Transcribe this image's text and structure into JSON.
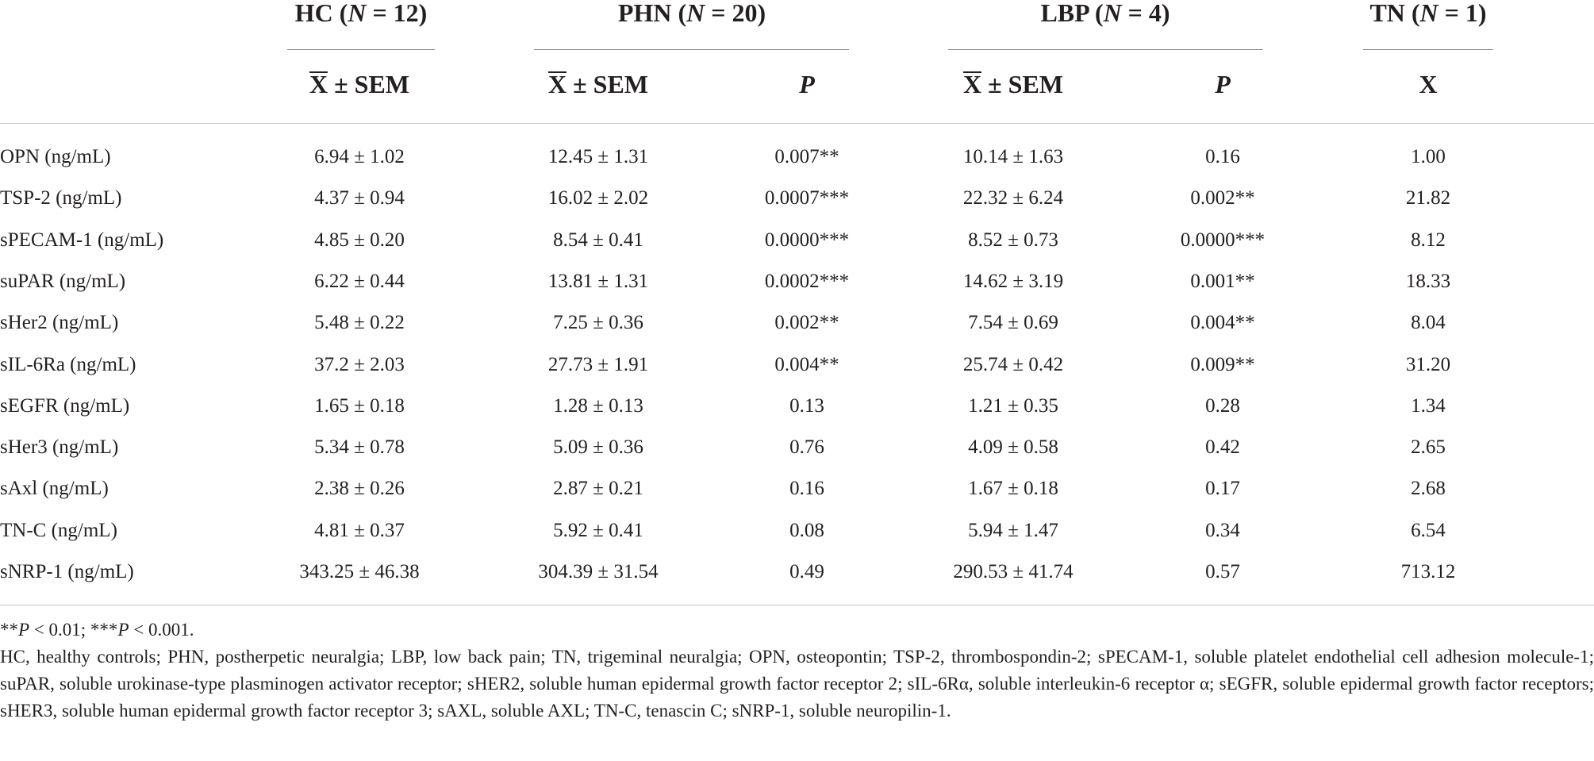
{
  "table": {
    "groups": [
      {
        "abbr": "HC",
        "n_label": "N",
        "n_value": "12"
      },
      {
        "abbr": "PHN",
        "n_label": "N",
        "n_value": "20"
      },
      {
        "abbr": "LBP",
        "n_label": "N",
        "n_value": "4"
      },
      {
        "abbr": "TN",
        "n_label": "N",
        "n_value": "1"
      }
    ],
    "subheaders": {
      "mean_sem": "X ± SEM",
      "mean_x": "X",
      "mean_sem_suffix": " ± SEM",
      "p": "P",
      "x": "X"
    },
    "rows": [
      {
        "label": "OPN (ng/mL)",
        "hc": "6.94 ± 1.02",
        "phn": "12.45 ± 1.31",
        "phn_p": "0.007**",
        "lbp": "10.14 ± 1.63",
        "lbp_p": "0.16",
        "tn": "1.00"
      },
      {
        "label": "TSP-2 (ng/mL)",
        "hc": "4.37 ± 0.94",
        "phn": "16.02 ± 2.02",
        "phn_p": "0.0007***",
        "lbp": "22.32 ± 6.24",
        "lbp_p": "0.002**",
        "tn": "21.82"
      },
      {
        "label": "sPECAM-1 (ng/mL)",
        "hc": "4.85 ± 0.20",
        "phn": "8.54 ± 0.41",
        "phn_p": "0.0000***",
        "lbp": "8.52 ± 0.73",
        "lbp_p": "0.0000***",
        "tn": "8.12"
      },
      {
        "label": "suPAR (ng/mL)",
        "hc": "6.22 ± 0.44",
        "phn": "13.81 ± 1.31",
        "phn_p": "0.0002***",
        "lbp": "14.62 ± 3.19",
        "lbp_p": "0.001**",
        "tn": "18.33"
      },
      {
        "label": "sHer2 (ng/mL)",
        "hc": "5.48 ± 0.22",
        "phn": "7.25 ± 0.36",
        "phn_p": "0.002**",
        "lbp": "7.54 ± 0.69",
        "lbp_p": "0.004**",
        "tn": "8.04"
      },
      {
        "label": "sIL-6Ra (ng/mL)",
        "hc": "37.2 ± 2.03",
        "phn": "27.73 ± 1.91",
        "phn_p": "0.004**",
        "lbp": "25.74 ± 0.42",
        "lbp_p": "0.009**",
        "tn": "31.20"
      },
      {
        "label": "sEGFR (ng/mL)",
        "hc": "1.65 ± 0.18",
        "phn": "1.28 ± 0.13",
        "phn_p": "0.13",
        "lbp": "1.21 ± 0.35",
        "lbp_p": "0.28",
        "tn": "1.34"
      },
      {
        "label": "sHer3 (ng/mL)",
        "hc": "5.34 ± 0.78",
        "phn": "5.09 ± 0.36",
        "phn_p": "0.76",
        "lbp": "4.09 ± 0.58",
        "lbp_p": "0.42",
        "tn": "2.65"
      },
      {
        "label": "sAxl (ng/mL)",
        "hc": "2.38 ± 0.26",
        "phn": "2.87 ± 0.21",
        "phn_p": "0.16",
        "lbp": "1.67 ± 0.18",
        "lbp_p": "0.17",
        "tn": "2.68"
      },
      {
        "label": "TN-C (ng/mL)",
        "hc": "4.81 ± 0.37",
        "phn": "5.92 ± 0.41",
        "phn_p": "0.08",
        "lbp": "5.94 ± 1.47",
        "lbp_p": "0.34",
        "tn": "6.54"
      },
      {
        "label": "sNRP-1 (ng/mL)",
        "hc": "343.25 ± 46.38",
        "phn": "304.39 ± 31.54",
        "phn_p": "0.49",
        "lbp": "290.53 ± 41.74",
        "lbp_p": "0.57",
        "tn": "713.12"
      }
    ]
  },
  "footnotes": {
    "significance": "**P < 0.01; ***P < 0.001.",
    "abbreviations": "HC, healthy controls; PHN, postherpetic neuralgia; LBP, low back pain; TN, trigeminal neuralgia; OPN, osteopontin; TSP-2, thrombospondin-2; sPECAM-1, soluble platelet endothelial cell adhesion molecule-1; suPAR, soluble urokinase-type plasminogen activator receptor; sHER2, soluble human epidermal growth factor receptor 2; sIL-6Rα, soluble interleukin-6 receptor α; sEGFR, soluble epidermal growth factor receptors; sHER3, soluble human epidermal growth factor receptor 3; sAXL, soluble AXL; TN-C, tenascin C; sNRP-1, soluble neuropilin-1."
  }
}
